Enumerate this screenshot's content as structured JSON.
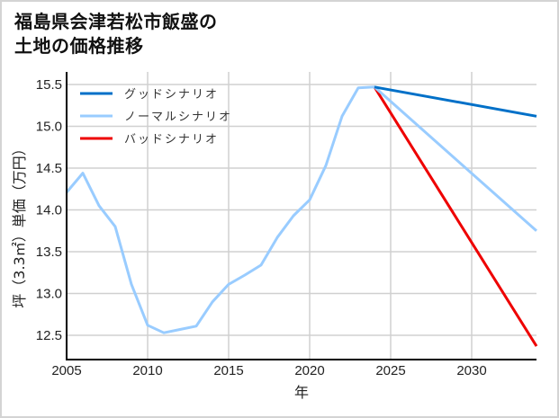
{
  "title_line1": "福島県会津若松市飯盛の",
  "title_line2": "土地の価格推移",
  "chart_data": {
    "type": "line",
    "title": "福島県会津若松市飯盛の土地の価格推移",
    "xlabel": "年",
    "ylabel": "坪（3.3㎡）単価（万円）",
    "xlim": [
      2005,
      2034
    ],
    "ylim": [
      12.22,
      15.6
    ],
    "x_ticks": [
      "2005",
      "2010",
      "2015",
      "2020",
      "2025",
      "2030"
    ],
    "y_ticks": [
      "12.5",
      "13.0",
      "13.5",
      "14.0",
      "14.5",
      "15.0",
      "15.5"
    ],
    "grid": true,
    "legend_position": "upper left",
    "series": [
      {
        "name": "グッドシナリオ",
        "color": "#0070c8",
        "x": [
          2024,
          2034
        ],
        "values": [
          15.47,
          15.12
        ]
      },
      {
        "name": "ノーマルシナリオ",
        "color": "#99ccff",
        "x": [
          2005,
          2006,
          2007,
          2008,
          2009,
          2010,
          2011,
          2012,
          2013,
          2014,
          2015,
          2016,
          2017,
          2018,
          2019,
          2020,
          2021,
          2022,
          2023,
          2024,
          2034
        ],
        "values": [
          14.21,
          14.44,
          14.05,
          13.8,
          13.11,
          12.62,
          12.53,
          12.57,
          12.61,
          12.9,
          13.11,
          13.22,
          13.34,
          13.67,
          13.93,
          14.12,
          14.53,
          15.12,
          15.46,
          15.47,
          13.75
        ]
      },
      {
        "name": "バッドシナリオ",
        "color": "#ee0000",
        "x": [
          2024,
          2034
        ],
        "values": [
          15.47,
          12.37
        ]
      }
    ]
  }
}
